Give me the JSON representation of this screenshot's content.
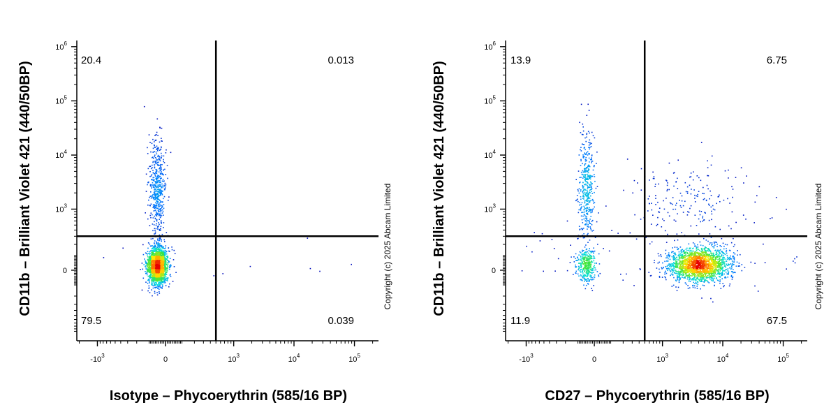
{
  "chart_data": [
    {
      "type": "scatter",
      "title": "",
      "xlabel": "Isotype – Phycoerythrin (585/16 BP)",
      "ylabel": "CD11b – Brilliant Violet 421  (440/50BP)",
      "x_ticks": [
        {
          "value": -1000,
          "base": "-10",
          "exp": "3"
        },
        {
          "value": 0,
          "base": "0",
          "exp": ""
        },
        {
          "value": 1000,
          "base": "10",
          "exp": "3"
        },
        {
          "value": 10000,
          "base": "10",
          "exp": "4"
        },
        {
          "value": 100000,
          "base": "10",
          "exp": "5"
        }
      ],
      "y_ticks": [
        {
          "value": 0,
          "base": "0",
          "exp": ""
        },
        {
          "value": 1000,
          "base": "10",
          "exp": "3"
        },
        {
          "value": 10000,
          "base": "10",
          "exp": "4"
        },
        {
          "value": 100000,
          "base": "10",
          "exp": "5"
        },
        {
          "value": 1000000,
          "base": "10",
          "exp": "6"
        }
      ],
      "xlim": [
        -2200,
        250000
      ],
      "ylim": [
        -1500,
        1300000
      ],
      "gate": {
        "x": 500,
        "y": 300
      },
      "quadrants": {
        "upper_left": "20.4",
        "upper_right": "0.013",
        "lower_left": "79.5",
        "lower_right": "0.039"
      },
      "populations": [
        {
          "name": "CD11b- cluster",
          "x": -50,
          "y": 30,
          "percent": 79.5
        },
        {
          "name": "CD11b+ cluster",
          "x": -50,
          "y": 2500,
          "percent": 20.4
        }
      ],
      "copyright": "Copyright (c) 2025 Abcam Limited"
    },
    {
      "type": "scatter",
      "title": "",
      "xlabel": "CD27 – Phycoerythrin (585/16 BP)",
      "ylabel": "CD11b – Brilliant Violet 421  (440/50BP)",
      "x_ticks": [
        {
          "value": -1000,
          "base": "-10",
          "exp": "3"
        },
        {
          "value": 0,
          "base": "0",
          "exp": ""
        },
        {
          "value": 1000,
          "base": "10",
          "exp": "3"
        },
        {
          "value": 10000,
          "base": "10",
          "exp": "4"
        },
        {
          "value": 100000,
          "base": "10",
          "exp": "5"
        }
      ],
      "y_ticks": [
        {
          "value": 0,
          "base": "0",
          "exp": ""
        },
        {
          "value": 1000,
          "base": "10",
          "exp": "3"
        },
        {
          "value": 10000,
          "base": "10",
          "exp": "4"
        },
        {
          "value": 100000,
          "base": "10",
          "exp": "5"
        },
        {
          "value": 1000000,
          "base": "10",
          "exp": "6"
        }
      ],
      "xlim": [
        -2200,
        250000
      ],
      "ylim": [
        -1500,
        1300000
      ],
      "gate": {
        "x": 500,
        "y": 300
      },
      "quadrants": {
        "upper_left": "13.9",
        "upper_right": "6.75",
        "lower_left": "11.9",
        "lower_right": "67.5"
      },
      "populations": [
        {
          "name": "CD27- CD11b- cluster",
          "x": -50,
          "y": 30,
          "percent": 11.9
        },
        {
          "name": "CD27- CD11b+ cluster",
          "x": -50,
          "y": 2500,
          "percent": 13.9
        },
        {
          "name": "CD27+ CD11b- cluster",
          "x": 4000,
          "y": 40,
          "percent": 67.5
        },
        {
          "name": "CD27+ CD11b+ cluster",
          "x": 3000,
          "y": 1500,
          "percent": 6.75
        }
      ],
      "copyright": "Copyright (c) 2025 Abcam Limited"
    }
  ]
}
